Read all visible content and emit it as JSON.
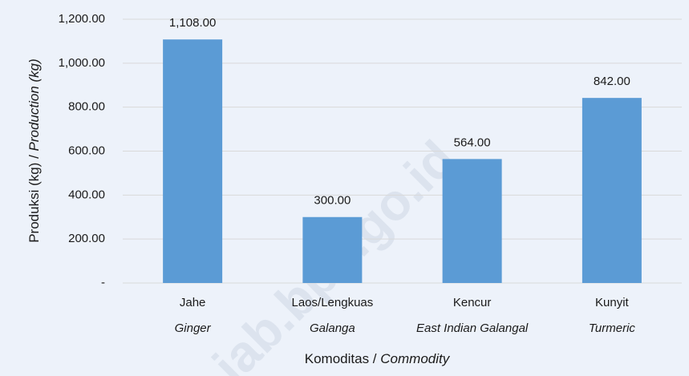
{
  "chart_data": {
    "type": "bar",
    "categories": [
      "Jahe",
      "Laos/Lengkuas",
      "Kencur",
      "Kunyit"
    ],
    "category_translations": [
      "Ginger",
      "Galanga",
      "East Indian Galangal",
      "Turmeric"
    ],
    "values": [
      1108,
      300,
      564,
      842
    ],
    "value_labels": [
      "1,108.00",
      "300.00",
      "564.00",
      "842.00"
    ],
    "color": "#5b9bd5",
    "ylim": [
      0,
      1200
    ],
    "yticks": [
      {
        "value": 0,
        "label": "-"
      },
      {
        "value": 200,
        "label": "200.00"
      },
      {
        "value": 400,
        "label": "400.00"
      },
      {
        "value": 600,
        "label": "600.00"
      },
      {
        "value": 800,
        "label": "800.00"
      },
      {
        "value": 1000,
        "label": "1,000.00"
      },
      {
        "value": 1200,
        "label": "1,200.00"
      }
    ],
    "grid": true,
    "y_label": [
      "Produksi (kg) / ",
      "Production (kg)"
    ],
    "x_label": [
      "Komoditas / ",
      "Commodity"
    ],
    "watermark": "jab.bps.go.id"
  }
}
